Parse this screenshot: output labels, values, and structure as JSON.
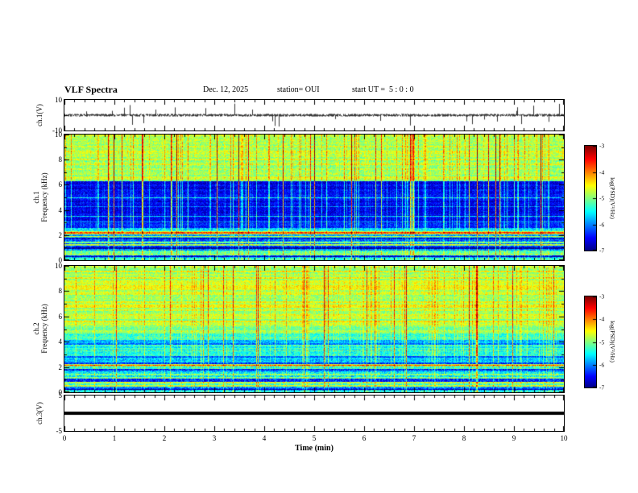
{
  "header": {
    "title": "VLF Spectra",
    "date": "Dec. 12, 2025",
    "station_label": "station= OUI",
    "start_ut_label": "start UT =  5 : 0 : 0"
  },
  "chart_data": {
    "type": "multi-panel",
    "title": "VLF Spectra",
    "xaxis": {
      "label": "Time (min)",
      "range": [
        0,
        10
      ],
      "ticks": [
        0,
        1,
        2,
        3,
        4,
        5,
        6,
        7,
        8,
        9,
        10
      ]
    },
    "psd_range": [
      -7,
      -3
    ],
    "panels": [
      {
        "id": "ch1-wave",
        "type": "line",
        "ylabel": "ch.1(V)",
        "ylim": [
          -10,
          10
        ],
        "yticks": [
          10,
          -10
        ],
        "description": "noisy voltage trace near 0 V with frequent impulsive spikes",
        "signal": {
          "baseline": 0,
          "noise_amp": 0.9,
          "spike_prob": 0.04,
          "spike_amp_min": 2,
          "spike_amp_max": 7,
          "seed": 7
        }
      },
      {
        "id": "ch1-spec",
        "type": "heatmap",
        "ylabel_lines": [
          "ch.1",
          "Frequency (kHz)"
        ],
        "flim": [
          0,
          10
        ],
        "yticks": [
          10,
          8,
          6,
          4,
          2,
          0
        ],
        "seed": 42,
        "colorbar": {
          "label": "log(PSD)(V²/Hz)",
          "ticks": [
            -3,
            -4,
            -5,
            -6,
            -7
          ]
        },
        "description": "green/yellow band with red vertical streaks above ~6.3 kHz, dark blue 2.6-6.3 kHz with vertical green streaks, horizontally striped blue/green below 2.6 kHz",
        "bands": [
          {
            "f": [
              6.3,
              10
            ],
            "base": -4.85,
            "jitter": 0.32,
            "vgain": 0.6,
            "hgain": 0.22
          },
          {
            "f": [
              2.6,
              6.3
            ],
            "base": -6.55,
            "jitter": 0.3,
            "vgain": 0.9,
            "hgain": 0.18
          },
          {
            "f": [
              0,
              2.6
            ],
            "base": -5.55,
            "jitter": 0.4,
            "vgain": 0.4,
            "hgain": 0.85
          }
        ],
        "hlines": [
          {
            "f": 5.0,
            "boost": 0.8,
            "w": 1
          },
          {
            "f": 4.3,
            "boost": 0.6,
            "w": 1
          },
          {
            "f": 3.5,
            "boost": 1.0,
            "w": 1
          },
          {
            "f": 3.05,
            "boost": 0.7,
            "w": 1
          },
          {
            "f": 2.25,
            "boost": 0.9,
            "w": 2
          },
          {
            "f": 1.85,
            "boost": -0.7,
            "w": 2
          },
          {
            "f": 1.45,
            "boost": 1.0,
            "w": 2
          },
          {
            "f": 1.05,
            "boost": -0.8,
            "w": 2
          },
          {
            "f": 0.65,
            "boost": 1.0,
            "w": 2
          },
          {
            "f": 0.3,
            "boost": -0.6,
            "w": 2
          }
        ]
      },
      {
        "id": "ch2-spec",
        "type": "heatmap",
        "ylabel_lines": [
          "ch.2",
          "Frequency (kHz)"
        ],
        "flim": [
          0,
          10
        ],
        "yticks": [
          10,
          8,
          6,
          4,
          2,
          0
        ],
        "seed": 1337,
        "colorbar": {
          "label": "log(PSD)(V²/Hz)",
          "ticks": [
            -3,
            -4,
            -5,
            -6,
            -7
          ]
        },
        "description": "fairly uniform green above ~4.7 kHz with sparse red streaks, cyan 2.4-4.7 kHz, horizontally striped mixed band below 2.4 kHz",
        "bands": [
          {
            "f": [
              4.7,
              10
            ],
            "base": -4.8,
            "jitter": 0.3,
            "vgain": 0.45,
            "hgain": 0.3
          },
          {
            "f": [
              2.4,
              4.7
            ],
            "base": -5.5,
            "jitter": 0.35,
            "vgain": 0.55,
            "hgain": 0.35
          },
          {
            "f": [
              0,
              2.4
            ],
            "base": -5.65,
            "jitter": 0.45,
            "vgain": 0.35,
            "hgain": 0.9
          }
        ],
        "hlines": [
          {
            "f": 3.9,
            "boost": -0.5,
            "w": 2
          },
          {
            "f": 3.3,
            "boost": 0.6,
            "w": 1
          },
          {
            "f": 2.85,
            "boost": -0.6,
            "w": 2
          },
          {
            "f": 2.15,
            "boost": 0.9,
            "w": 2
          },
          {
            "f": 1.75,
            "boost": -0.7,
            "w": 2
          },
          {
            "f": 1.35,
            "boost": 0.8,
            "w": 2
          },
          {
            "f": 0.95,
            "boost": -0.6,
            "w": 2
          },
          {
            "f": 0.55,
            "boost": 0.9,
            "w": 2
          },
          {
            "f": 0.25,
            "boost": -0.5,
            "w": 2
          }
        ]
      },
      {
        "id": "ch3-wave",
        "type": "line",
        "ylabel": "ch.3(V)",
        "ylim": [
          -5,
          5
        ],
        "yticks": [
          5,
          -5
        ],
        "description": "flat thick trace at 0 V",
        "signal": {
          "baseline": 0,
          "value": 0,
          "line_thickness": 4
        }
      }
    ]
  }
}
